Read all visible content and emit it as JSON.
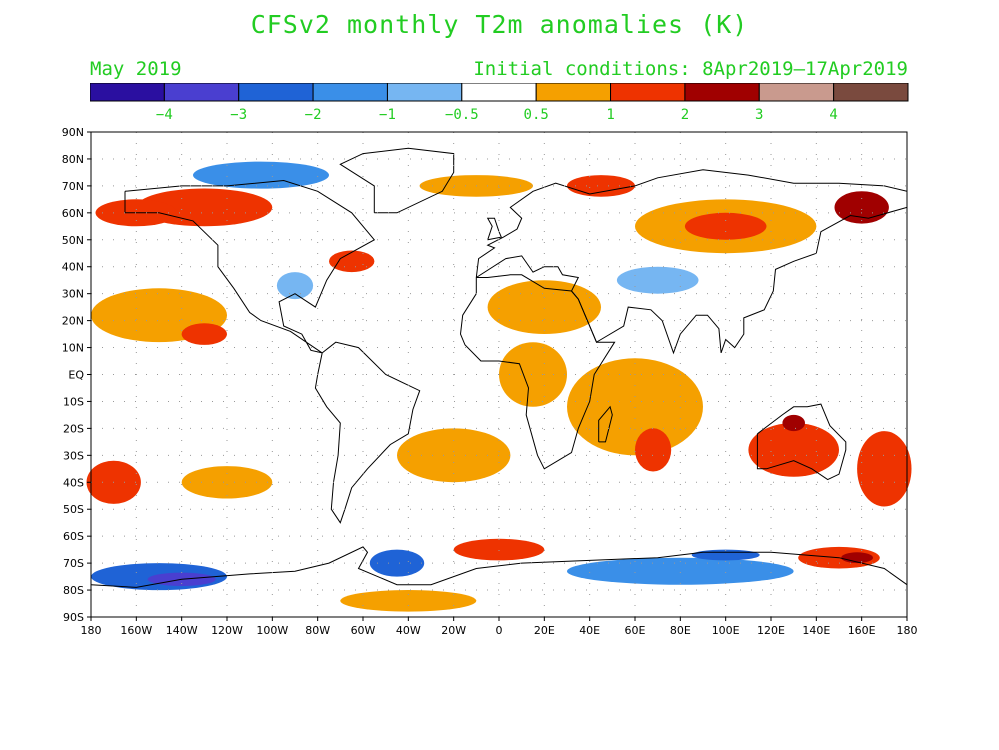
{
  "title": "CFSv2 monthly T2m anomalies (K)",
  "subtitle_left": "May 2019",
  "subtitle_right": "Initial conditions: 8Apr2019–17Apr2019",
  "colorbar": {
    "labels": [
      "−4",
      "−3",
      "−2",
      "−1",
      "−0.5",
      "0.5",
      "1",
      "2",
      "3",
      "4"
    ],
    "colors": [
      "#2a0fa0",
      "#4a3fd0",
      "#1f63d6",
      "#3a8fe8",
      "#76b6f2",
      "#ffffff",
      "#f5a000",
      "#ee3300",
      "#a00000",
      "#c99a8e",
      "#7a4a3e"
    ]
  },
  "axes": {
    "lat_labels": [
      "90N",
      "80N",
      "70N",
      "60N",
      "50N",
      "40N",
      "30N",
      "20N",
      "10N",
      "EQ",
      "10S",
      "20S",
      "30S",
      "40S",
      "50S",
      "60S",
      "70S",
      "80S",
      "90S"
    ],
    "lon_labels": [
      "180",
      "160W",
      "140W",
      "120W",
      "100W",
      "80W",
      "60W",
      "40W",
      "20W",
      "0",
      "20E",
      "40E",
      "60E",
      "80E",
      "100E",
      "120E",
      "140E",
      "160E",
      "180"
    ],
    "lon_range": [
      -180,
      180
    ],
    "lat_range": [
      -90,
      90
    ],
    "grid": true
  },
  "anomaly_regions": [
    {
      "lon": -130,
      "lat": 62,
      "rx": 30,
      "ry": 7,
      "level": 2
    },
    {
      "lon": -160,
      "lat": 60,
      "rx": 18,
      "ry": 5,
      "level": 2
    },
    {
      "lon": -105,
      "lat": 74,
      "rx": 30,
      "ry": 5,
      "level": -1
    },
    {
      "lon": -90,
      "lat": 33,
      "rx": 8,
      "ry": 5,
      "level": -0.5
    },
    {
      "lon": -65,
      "lat": 42,
      "rx": 10,
      "ry": 4,
      "level": 2
    },
    {
      "lon": -10,
      "lat": 70,
      "rx": 25,
      "ry": 4,
      "level": 1
    },
    {
      "lon": 45,
      "lat": 70,
      "rx": 15,
      "ry": 4,
      "level": 2
    },
    {
      "lon": 100,
      "lat": 55,
      "rx": 40,
      "ry": 10,
      "level": 1
    },
    {
      "lon": 100,
      "lat": 55,
      "rx": 18,
      "ry": 5,
      "level": 2
    },
    {
      "lon": 160,
      "lat": 62,
      "rx": 12,
      "ry": 6,
      "level": 3
    },
    {
      "lon": 70,
      "lat": 35,
      "rx": 18,
      "ry": 5,
      "level": -0.5
    },
    {
      "lon": 20,
      "lat": 25,
      "rx": 25,
      "ry": 10,
      "level": 1
    },
    {
      "lon": 15,
      "lat": 0,
      "rx": 15,
      "ry": 12,
      "level": 1
    },
    {
      "lon": -150,
      "lat": 22,
      "rx": 30,
      "ry": 10,
      "level": 1
    },
    {
      "lon": -130,
      "lat": 15,
      "rx": 10,
      "ry": 4,
      "level": 2
    },
    {
      "lon": 60,
      "lat": -12,
      "rx": 30,
      "ry": 18,
      "level": 1
    },
    {
      "lon": 68,
      "lat": -28,
      "rx": 8,
      "ry": 8,
      "level": 2
    },
    {
      "lon": 130,
      "lat": -28,
      "rx": 20,
      "ry": 10,
      "level": 2
    },
    {
      "lon": 130,
      "lat": -18,
      "rx": 5,
      "ry": 3,
      "level": 3
    },
    {
      "lon": 170,
      "lat": -35,
      "rx": 12,
      "ry": 14,
      "level": 2
    },
    {
      "lon": -170,
      "lat": -40,
      "rx": 12,
      "ry": 8,
      "level": 2
    },
    {
      "lon": -120,
      "lat": -40,
      "rx": 20,
      "ry": 6,
      "level": 1
    },
    {
      "lon": -20,
      "lat": -30,
      "rx": 25,
      "ry": 10,
      "level": 1
    },
    {
      "lon": 0,
      "lat": -65,
      "rx": 20,
      "ry": 4,
      "level": 2
    },
    {
      "lon": 150,
      "lat": -68,
      "rx": 18,
      "ry": 4,
      "level": 2
    },
    {
      "lon": 158,
      "lat": -68,
      "rx": 7,
      "ry": 2,
      "level": 3
    },
    {
      "lon": -150,
      "lat": -75,
      "rx": 30,
      "ry": 5,
      "level": -2
    },
    {
      "lon": -140,
      "lat": -76,
      "rx": 15,
      "ry": 2.5,
      "level": -3
    },
    {
      "lon": -45,
      "lat": -70,
      "rx": 12,
      "ry": 5,
      "level": -2
    },
    {
      "lon": 80,
      "lat": -73,
      "rx": 50,
      "ry": 5,
      "level": -1
    },
    {
      "lon": 100,
      "lat": -67,
      "rx": 15,
      "ry": 2,
      "level": -2
    },
    {
      "lon": -40,
      "lat": -84,
      "rx": 30,
      "ry": 4,
      "level": 1
    }
  ]
}
